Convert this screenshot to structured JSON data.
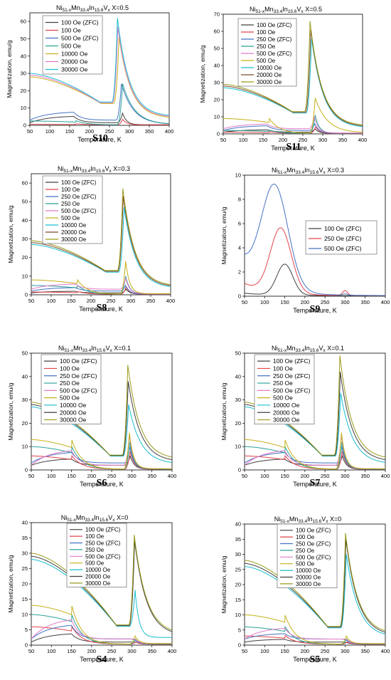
{
  "chart_data": [
    {
      "id": "S10",
      "panel_label": "S10",
      "type": "line",
      "title": {
        "base": "Ni",
        "s1": "51-x",
        "m2": "Mn",
        "s2": "33.4",
        "m3": "In",
        "s3": "15.6",
        "m4": "V",
        "s4": "x",
        "suffix": "  X=0.5"
      },
      "xlabel": "Temperature, K",
      "ylabel": "Magnetization, emu/g",
      "xlim": [
        50,
        400
      ],
      "ylim": [
        0,
        65
      ],
      "xticks": [
        50,
        100,
        150,
        200,
        250,
        300,
        350,
        400
      ],
      "yticks": [
        0,
        10,
        20,
        30,
        40,
        50,
        60
      ],
      "legend_position": "top-left",
      "profile": "A",
      "series": [
        {
          "name": "100 Oe (ZFC)",
          "color": "#404040",
          "low": 1.5,
          "lowPeak": 5.5,
          "peakT": 283,
          "peak": 7,
          "tail": 0.3,
          "ztc": 1
        },
        {
          "name": "100 Oe",
          "color": "#e2434b",
          "low": 0.6,
          "lowPeak": 1.5,
          "peakT": 283,
          "peak": 3.5,
          "tail": 0.3
        },
        {
          "name": "500 Oe (ZFC)",
          "color": "#4472c4",
          "low": 3,
          "lowPeak": 8,
          "peakT": 280,
          "peak": 24,
          "tail": 0.5,
          "ztc": 1
        },
        {
          "name": "500 Oe",
          "color": "#2aa198",
          "low": 2.5,
          "lowPeak": 7,
          "peakT": 283,
          "peak": 24,
          "tail": 0.5
        },
        {
          "name": "10000 Oe",
          "color": "#c6b018",
          "low": 28,
          "peakT": 274,
          "peak": 51,
          "tail": 4
        },
        {
          "name": "20000 Oe",
          "color": "#e07ac8",
          "low": 29,
          "peakT": 271,
          "peak": 57,
          "tail": 4.5
        },
        {
          "name": "30000 Oe",
          "color": "#17becf",
          "low": 30,
          "peakT": 270,
          "peak": 62,
          "tail": 5
        }
      ]
    },
    {
      "id": "S11",
      "panel_label": "S11",
      "type": "line",
      "title": {
        "base": "Ni",
        "s1": "51-x",
        "m2": "Mn",
        "s2": "33.4",
        "m3": "In",
        "s3": "15.6",
        "m4": "V",
        "s4": "x",
        "suffix": "  X=0.5"
      },
      "xlabel": "Temperature, K",
      "ylabel": "Magnetization, emu/g",
      "xlim": [
        50,
        400
      ],
      "ylim": [
        0,
        70
      ],
      "xticks": [
        50,
        100,
        150,
        200,
        250,
        300,
        350,
        400
      ],
      "yticks": [
        0,
        10,
        20,
        30,
        40,
        50,
        60,
        70
      ],
      "legend_position": "top-left",
      "profile": "A",
      "series": [
        {
          "name": "100 Oe (ZFC)",
          "color": "#404040",
          "low": 1,
          "lowPeak": 2.5,
          "peakT": 280,
          "peak": 3,
          "tail": 0.3,
          "ztc": 1
        },
        {
          "name": "100 Oe",
          "color": "#e2434b",
          "low": 1,
          "lowPeak": 2,
          "peakT": 282,
          "peak": 4,
          "tail": 0.3
        },
        {
          "name": "250 Oe (ZFC)",
          "color": "#4472c4",
          "low": 2,
          "lowPeak": 5,
          "peakT": 280,
          "peak": 6,
          "tail": 0.4,
          "ztc": 1
        },
        {
          "name": "250 Oe",
          "color": "#2aa198",
          "low": 2,
          "lowPeak": 5,
          "peakT": 281,
          "peak": 11,
          "tail": 0.4
        },
        {
          "name": "500 Oe (ZFC)",
          "color": "#e07ac8",
          "low": 3,
          "lowPeak": 6,
          "peakT": 279,
          "peak": 10,
          "tail": 0.5,
          "ztc": 1
        },
        {
          "name": "500 Oe",
          "color": "#c6b018",
          "low": 9,
          "peakT": 281,
          "peak": 21,
          "tail": 0.6
        },
        {
          "name": "10000 Oe",
          "color": "#17becf",
          "low": 27,
          "peakT": 272,
          "peak": 56,
          "tail": 3.5
        },
        {
          "name": "20000 Oe",
          "color": "#7a4a2e",
          "low": 28,
          "peakT": 270,
          "peak": 61,
          "tail": 4
        },
        {
          "name": "30000 Oe",
          "color": "#9a9a18",
          "low": 29,
          "peakT": 268,
          "peak": 66,
          "tail": 4.5
        }
      ]
    },
    {
      "id": "S8",
      "panel_label": "S8",
      "type": "line",
      "title": {
        "base": "Ni",
        "s1": "51-x",
        "m2": "Mn",
        "s2": "33.4",
        "m3": "In",
        "s3": "15.6",
        "m4": "V",
        "s4": "x",
        "suffix": "  X=0.3"
      },
      "xlabel": "Temperature, K",
      "ylabel": "Magnetization, emu/g",
      "xlim": [
        50,
        400
      ],
      "ylim": [
        0,
        65
      ],
      "xticks": [
        50,
        100,
        150,
        200,
        250,
        300,
        350,
        400
      ],
      "yticks": [
        0,
        10,
        20,
        30,
        40,
        50,
        60
      ],
      "legend_position": "top-right",
      "profile": "A",
      "series": [
        {
          "name": "100 Oe (ZFC)",
          "color": "#404040",
          "low": 1,
          "lowPeak": 2,
          "peakT": 288,
          "peak": 3,
          "tail": 0.3,
          "ztc": 1
        },
        {
          "name": "100 Oe",
          "color": "#e2434b",
          "low": 1.5,
          "lowPeak": 3,
          "peakT": 288,
          "peak": 4,
          "tail": 0.3
        },
        {
          "name": "250 Oe (ZFC)",
          "color": "#4472c4",
          "low": 2,
          "lowPeak": 4,
          "peakT": 287,
          "peak": 5,
          "tail": 0.4,
          "ztc": 1
        },
        {
          "name": "250 Oe",
          "color": "#2aa198",
          "low": 5,
          "peakT": 287,
          "peak": 10,
          "tail": 0.5
        },
        {
          "name": "500 Oe (ZFC)",
          "color": "#e07ac8",
          "low": 3,
          "lowPeak": 6,
          "peakT": 287,
          "peak": 9,
          "tail": 0.5,
          "ztc": 1
        },
        {
          "name": "500 Oe",
          "color": "#c6b018",
          "low": 8,
          "peakT": 287,
          "peak": 18,
          "tail": 0.6
        },
        {
          "name": "10000 Oe",
          "color": "#17becf",
          "low": 27,
          "peakT": 283,
          "peak": 47,
          "tail": 3.5
        },
        {
          "name": "20000 Oe",
          "color": "#7a4a2e",
          "low": 28,
          "peakT": 281,
          "peak": 53,
          "tail": 4
        },
        {
          "name": "30000 Oe",
          "color": "#9a9a18",
          "low": 29,
          "peakT": 280,
          "peak": 57,
          "tail": 4.5
        }
      ]
    },
    {
      "id": "S9",
      "panel_label": "S9",
      "type": "line",
      "title": {
        "base": "Ni",
        "s1": "51-x",
        "m2": "Mn",
        "s2": "33.4",
        "m3": "In",
        "s3": "15.6",
        "m4": "V",
        "s4": "x",
        "suffix": "  X=0.3"
      },
      "xlabel": "Temperature, K",
      "ylabel": "Magnetization, emu/g",
      "xlim": [
        50,
        400
      ],
      "ylim": [
        0,
        10
      ],
      "xticks": [
        50,
        100,
        150,
        200,
        250,
        300,
        350,
        400
      ],
      "yticks": [
        0,
        2,
        4,
        6,
        8,
        10
      ],
      "legend_position": "top-right",
      "profile": "B",
      "series": [
        {
          "name": "100 Oe (ZFC)",
          "color": "#404040",
          "low": 0.2,
          "bumpT": 150,
          "bump": 2.6,
          "sigma": 20,
          "hump": 0
        },
        {
          "name": "250 Oe (ZFC)",
          "color": "#e2434b",
          "low": 1,
          "bumpT": 140,
          "bump": 5.6,
          "sigma": 26,
          "hump": 0.4
        },
        {
          "name": "500 Oe (ZFC)",
          "color": "#4472c4",
          "low": 2.8,
          "bumpT": 125,
          "bump": 9.2,
          "sigma": 33,
          "hump": 0.1
        }
      ]
    },
    {
      "id": "S6",
      "panel_label": "S6",
      "type": "line",
      "title": {
        "base": "Ni",
        "s1": "51-x",
        "m2": "Mn",
        "s2": "33.4",
        "m3": "In",
        "s3": "15.6",
        "m4": "V",
        "s4": "x",
        "suffix": "  X=0.1"
      },
      "xlabel": "Temperature, K",
      "ylabel": "Magnetization, emu/g",
      "xlim": [
        50,
        400
      ],
      "ylim": [
        0,
        50
      ],
      "xticks": [
        50,
        100,
        150,
        200,
        250,
        300,
        350,
        400
      ],
      "yticks": [
        0,
        10,
        20,
        30,
        40,
        50
      ],
      "legend_position": "top-right",
      "profile": "C",
      "series": [
        {
          "name": "100 Oe (ZFC)",
          "color": "#404040",
          "low": 2,
          "lowPeak": 5,
          "peakT": 296,
          "peak": 6,
          "tail": 0.3,
          "ztc": 1
        },
        {
          "name": "100 Oe",
          "color": "#e2434b",
          "low": 6,
          "peakT": 296,
          "peak": 8,
          "tail": 0.3
        },
        {
          "name": "250 Oe (ZFC)",
          "color": "#4472c4",
          "low": 3,
          "lowPeak": 8,
          "peakT": 295,
          "peak": 10,
          "tail": 0.4,
          "ztc": 1
        },
        {
          "name": "250 Oe",
          "color": "#2aa198",
          "low": 10,
          "peakT": 295,
          "peak": 12,
          "tail": 0.4
        },
        {
          "name": "500 Oe (ZFC)",
          "color": "#e07ac8",
          "low": 2,
          "lowPeak": 9,
          "peakT": 294,
          "peak": 15,
          "tail": 0.5,
          "ztc": 1
        },
        {
          "name": "500 Oe",
          "color": "#c6b018",
          "low": 13,
          "peakT": 294,
          "peak": 16,
          "tail": 0.5
        },
        {
          "name": "10000 Oe",
          "color": "#17becf",
          "low": 27,
          "peakT": 292,
          "peak": 28,
          "tail": 2.5
        },
        {
          "name": "20000 Oe",
          "color": "#404040",
          "low": 28,
          "peakT": 291,
          "peak": 38,
          "tail": 3.5
        },
        {
          "name": "30000 Oe",
          "color": "#9a9a18",
          "low": 29,
          "peakT": 290,
          "peak": 45,
          "tail": 4.5
        }
      ]
    },
    {
      "id": "S7",
      "panel_label": "S7",
      "type": "line",
      "title": {
        "base": "Ni",
        "s1": "51-x",
        "m2": "Mn",
        "s2": "33.4",
        "m3": "In",
        "s3": "15.6",
        "m4": "V",
        "s4": "x",
        "suffix": "  X=0.1"
      },
      "xlabel": "Temperature, K",
      "ylabel": "Magnetization, emu/g",
      "xlim": [
        50,
        400
      ],
      "ylim": [
        0,
        50
      ],
      "xticks": [
        50,
        100,
        150,
        200,
        250,
        300,
        350,
        400
      ],
      "yticks": [
        0,
        10,
        20,
        30,
        40,
        50
      ],
      "legend_position": "top-right",
      "profile": "C",
      "series": [
        {
          "name": "100 Oe (ZFC)",
          "color": "#404040",
          "low": 2,
          "lowPeak": 5,
          "peakT": 293,
          "peak": 6,
          "tail": 0.3,
          "ztc": 1
        },
        {
          "name": "100 Oe",
          "color": "#e2434b",
          "low": 6,
          "peakT": 293,
          "peak": 8,
          "tail": 0.3
        },
        {
          "name": "250 Oe (ZFC)",
          "color": "#4472c4",
          "low": 3,
          "lowPeak": 8,
          "peakT": 292,
          "peak": 10,
          "tail": 0.4,
          "ztc": 1
        },
        {
          "name": "250 Oe",
          "color": "#2aa198",
          "low": 10,
          "peakT": 292,
          "peak": 12,
          "tail": 0.4
        },
        {
          "name": "500 Oe (ZFC)",
          "color": "#e07ac8",
          "low": 2,
          "lowPeak": 9,
          "peakT": 291,
          "peak": 15,
          "tail": 0.5,
          "ztc": 1
        },
        {
          "name": "500 Oe",
          "color": "#c6b018",
          "low": 13,
          "peakT": 291,
          "peak": 16,
          "tail": 0.5
        },
        {
          "name": "10000 Oe",
          "color": "#17becf",
          "low": 27,
          "peakT": 289,
          "peak": 33,
          "tail": 2.5
        },
        {
          "name": "20000 Oe",
          "color": "#404040",
          "low": 28,
          "peakT": 288,
          "peak": 42,
          "tail": 3.5
        },
        {
          "name": "30000 Oe",
          "color": "#9a9a18",
          "low": 29,
          "peakT": 287,
          "peak": 49,
          "tail": 4.5
        }
      ]
    },
    {
      "id": "S4",
      "panel_label": "S4",
      "type": "line",
      "title": {
        "base": "Ni",
        "s1": "51-x",
        "m2": "Mn",
        "s2": "33.4",
        "m3": "In",
        "s3": "15.6",
        "m4": "V",
        "s4": "x",
        "suffix": "  X=0"
      },
      "xlabel": "Temperature, K",
      "ylabel": "Magnetization, emu/g",
      "xlim": [
        50,
        400
      ],
      "ylim": [
        0,
        40
      ],
      "xticks": [
        50,
        100,
        150,
        200,
        250,
        300,
        350,
        400
      ],
      "yticks": [
        0,
        5,
        10,
        15,
        20,
        25,
        30,
        35,
        40
      ],
      "legend_position": "top-right",
      "profile": "D",
      "series": [
        {
          "name": "100 Oe (ZFC)",
          "color": "#404040",
          "low": 1,
          "lowPeak": 4,
          "peakT": 310,
          "peak": 1,
          "tail": 0.3,
          "ztc": 1
        },
        {
          "name": "100 Oe",
          "color": "#e2434b",
          "low": 6,
          "peakT": 310,
          "peak": 1,
          "tail": 0.3
        },
        {
          "name": "250 Oe (ZFC)",
          "color": "#4472c4",
          "low": 2,
          "lowPeak": 7,
          "peakT": 309,
          "peak": 1.5,
          "tail": 0.4,
          "ztc": 1
        },
        {
          "name": "250 Oe",
          "color": "#2aa198",
          "low": 10,
          "peakT": 309,
          "peak": 2,
          "tail": 0.4
        },
        {
          "name": "500 Oe (ZFC)",
          "color": "#e07ac8",
          "low": 2,
          "lowPeak": 9,
          "peakT": 308,
          "peak": 2,
          "tail": 0.5,
          "ztc": 1
        },
        {
          "name": "500 Oe",
          "color": "#c6b018",
          "low": 13,
          "peakT": 308,
          "peak": 3,
          "tail": 0.5
        },
        {
          "name": "10000 Oe",
          "color": "#17becf",
          "low": 28,
          "peakT": 308,
          "peak": 18,
          "tail": 2.5
        },
        {
          "name": "20000 Oe",
          "color": "#404040",
          "low": 29,
          "peakT": 307,
          "peak": 34,
          "tail": 3
        },
        {
          "name": "30000 Oe",
          "color": "#9a9a18",
          "low": 30,
          "peakT": 306,
          "peak": 36,
          "tail": 3.5
        }
      ]
    },
    {
      "id": "S5",
      "panel_label": "S5",
      "type": "line",
      "title": {
        "base": "Ni",
        "s1": "51-x",
        "m2": "Mn",
        "s2": "33.4",
        "m3": "In",
        "s3": "15.6",
        "m4": "V",
        "s4": "x",
        "suffix": "  X=0"
      },
      "xlabel": "Temperature, K",
      "ylabel": "Magnetization, emu/g",
      "xlim": [
        50,
        400
      ],
      "ylim": [
        0,
        40
      ],
      "xticks": [
        50,
        100,
        150,
        200,
        250,
        300,
        350,
        400
      ],
      "yticks": [
        0,
        5,
        10,
        15,
        20,
        25,
        30,
        35,
        40
      ],
      "legend_position": "top-right",
      "profile": "D",
      "series": [
        {
          "name": "100 Oe (ZFC)",
          "color": "#404040",
          "low": 1,
          "lowPeak": 2,
          "peakT": 305,
          "peak": 0.8,
          "tail": 0.3,
          "ztc": 1
        },
        {
          "name": "100 Oe",
          "color": "#e2434b",
          "low": 3,
          "peakT": 305,
          "peak": 1,
          "tail": 0.3
        },
        {
          "name": "250 Oe (ZFC)",
          "color": "#4472c4",
          "low": 2,
          "lowPeak": 4,
          "peakT": 304,
          "peak": 1.5,
          "tail": 0.4,
          "ztc": 1
        },
        {
          "name": "250 Oe",
          "color": "#2aa198",
          "low": 6,
          "peakT": 304,
          "peak": 2,
          "tail": 0.4
        },
        {
          "name": "500 Oe (ZFC)",
          "color": "#e07ac8",
          "low": 2,
          "lowPeak": 6,
          "peakT": 303,
          "peak": 2,
          "tail": 0.5,
          "ztc": 1
        },
        {
          "name": "500 Oe",
          "color": "#c6b018",
          "low": 10,
          "peakT": 303,
          "peak": 3,
          "tail": 0.5
        },
        {
          "name": "10000 Oe",
          "color": "#17becf",
          "low": 26,
          "peakT": 303,
          "peak": 30,
          "tail": 2.5
        },
        {
          "name": "20000 Oe",
          "color": "#404040",
          "low": 27,
          "peakT": 302,
          "peak": 35,
          "tail": 3
        },
        {
          "name": "30000 Oe",
          "color": "#9a9a18",
          "low": 28,
          "peakT": 301,
          "peak": 37,
          "tail": 3.5
        }
      ]
    }
  ]
}
